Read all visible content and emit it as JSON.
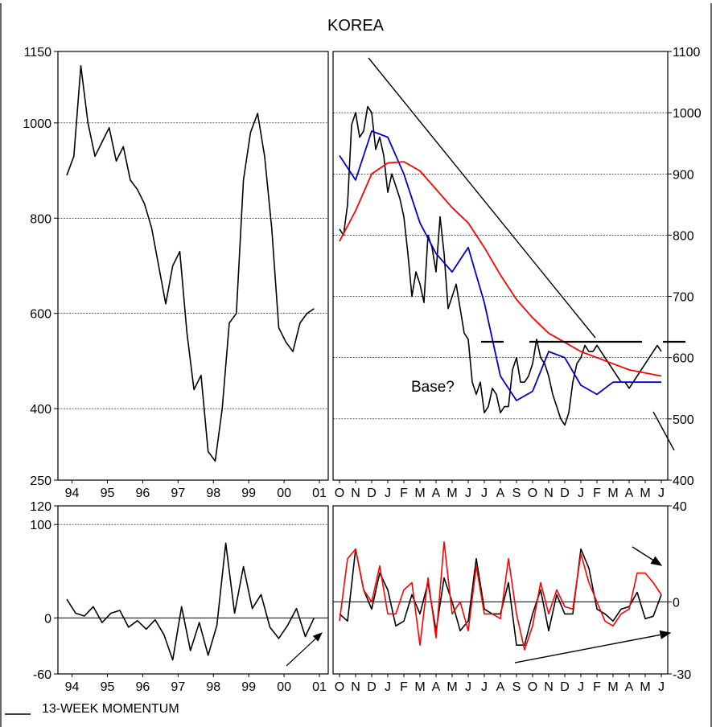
{
  "title": "KOREA",
  "footer_label": "13-WEEK MOMENTUM",
  "chart_data": [
    {
      "type": "line",
      "panel": "long-term-price",
      "ylim": [
        250,
        1150
      ],
      "yticks": [
        250,
        400,
        600,
        800,
        1000,
        1150
      ],
      "xticks": [
        "94",
        "95",
        "96",
        "97",
        "98",
        "99",
        "00",
        "01"
      ],
      "grid": "horizontal dashed at 400, 600, 800, 1000",
      "series": [
        {
          "x": [
            94.0,
            94.2,
            94.4,
            94.6,
            94.8,
            95.0,
            95.2,
            95.4,
            95.6,
            95.8,
            96.0,
            96.2,
            96.4,
            96.6,
            96.8,
            97.0,
            97.2,
            97.4,
            97.6,
            97.8,
            98.0,
            98.2,
            98.4,
            98.6,
            98.8,
            99.0,
            99.2,
            99.4,
            99.6,
            99.8,
            100.0,
            100.2,
            100.4,
            100.6,
            100.8,
            101.0
          ],
          "values": [
            890,
            930,
            1120,
            1000,
            930,
            960,
            990,
            920,
            950,
            880,
            860,
            830,
            780,
            700,
            620,
            700,
            730,
            560,
            440,
            470,
            310,
            290,
            400,
            580,
            600,
            880,
            980,
            1020,
            930,
            780,
            570,
            540,
            520,
            580,
            600,
            610
          ]
        }
      ]
    },
    {
      "type": "line",
      "panel": "recent-price",
      "ylim": [
        400,
        1100
      ],
      "yticks": [
        400,
        500,
        600,
        700,
        800,
        900,
        1000,
        1100
      ],
      "xticks": [
        "O",
        "N",
        "D",
        "J",
        "F",
        "M",
        "A",
        "M",
        "J",
        "J",
        "A",
        "S",
        "O",
        "N",
        "D",
        "J",
        "F",
        "M",
        "A",
        "M",
        "J"
      ],
      "grid": "horizontal dashed at 500, 600, 700, 800, 900, 1000",
      "annotations": [
        "Base?"
      ],
      "series": [
        {
          "color": "#000000",
          "x": [
            0,
            0.25,
            0.5,
            0.75,
            1.0,
            1.25,
            1.5,
            1.75,
            2.0,
            2.25,
            2.5,
            2.75,
            3.0,
            3.25,
            3.5,
            3.75,
            4.0,
            4.25,
            4.5,
            4.75,
            5.0,
            5.25,
            5.5,
            5.75,
            6.0,
            6.25,
            6.5,
            6.75,
            7.0,
            7.25,
            7.5,
            7.75,
            8.0,
            8.25,
            8.5,
            8.75,
            9.0,
            9.25,
            9.5,
            9.75,
            10.0,
            10.25,
            10.5,
            10.75,
            11.0,
            11.25,
            11.5,
            11.75,
            12.0,
            12.25,
            12.5,
            12.75,
            13.0,
            13.25,
            13.5,
            13.75,
            14.0,
            14.25,
            14.5,
            14.75,
            15.0,
            15.25,
            15.5,
            15.75,
            16.0,
            16.25,
            16.5,
            16.75,
            17.0,
            17.25,
            17.5,
            17.75,
            18.0,
            18.25,
            18.5,
            18.75,
            19.0,
            19.25,
            19.5,
            19.75,
            20.0
          ],
          "values": [
            810,
            800,
            850,
            980,
            1000,
            960,
            970,
            1010,
            1000,
            940,
            960,
            930,
            870,
            900,
            880,
            860,
            830,
            770,
            700,
            740,
            720,
            690,
            800,
            780,
            740,
            830,
            770,
            680,
            700,
            720,
            680,
            640,
            630,
            560,
            540,
            560,
            510,
            520,
            550,
            540,
            510,
            520,
            520,
            580,
            600,
            560,
            560,
            570,
            590,
            630,
            600,
            590,
            570,
            540,
            520,
            500,
            490,
            510,
            560,
            590,
            600,
            620,
            610,
            610,
            620,
            610,
            600,
            590,
            580,
            570,
            560,
            560,
            550,
            560,
            570,
            580,
            590,
            600,
            610,
            620,
            610
          ]
        },
        {
          "color": "#0000cc",
          "x": [
            0,
            1,
            2,
            3,
            4,
            5,
            6,
            7,
            8,
            9,
            10,
            11,
            12,
            13,
            14,
            15,
            16,
            17,
            18,
            19,
            20
          ],
          "values": [
            930,
            890,
            970,
            960,
            900,
            820,
            770,
            740,
            780,
            690,
            570,
            530,
            545,
            610,
            600,
            555,
            540,
            560,
            560,
            560,
            560
          ]
        },
        {
          "color": "#ff0000",
          "x": [
            0,
            1,
            2,
            3,
            4,
            5,
            6,
            7,
            8,
            9,
            10,
            11,
            12,
            13,
            14,
            15,
            16,
            17,
            18,
            19,
            20
          ],
          "values": [
            790,
            840,
            900,
            918,
            920,
            905,
            875,
            845,
            820,
            780,
            735,
            695,
            665,
            640,
            625,
            610,
            600,
            590,
            580,
            575,
            570
          ]
        }
      ]
    },
    {
      "type": "line",
      "panel": "long-term-momentum",
      "ylim": [
        -60,
        120
      ],
      "yticks": [
        -60,
        0,
        100,
        120
      ],
      "xticks": [
        "94",
        "95",
        "96",
        "97",
        "98",
        "99",
        "00",
        "01"
      ],
      "grid": "horizontal dashed at 100; solid zero line",
      "series": [
        {
          "x": [
            94.0,
            94.25,
            94.5,
            94.75,
            95.0,
            95.25,
            95.5,
            95.75,
            96.0,
            96.25,
            96.5,
            96.75,
            97.0,
            97.25,
            97.5,
            97.75,
            98.0,
            98.25,
            98.5,
            98.75,
            99.0,
            99.25,
            99.5,
            99.75,
            100.0,
            100.25,
            100.5,
            100.75,
            101.0
          ],
          "values": [
            20,
            5,
            2,
            12,
            -5,
            5,
            8,
            -10,
            -3,
            -12,
            -2,
            -18,
            -45,
            12,
            -35,
            -5,
            -40,
            -8,
            80,
            5,
            55,
            10,
            25,
            -10,
            -22,
            -8,
            10,
            -20,
            0
          ]
        }
      ]
    },
    {
      "type": "line",
      "panel": "recent-momentum",
      "ylim": [
        -30,
        40
      ],
      "yticks": [
        -30,
        0,
        40
      ],
      "xticks": [
        "O",
        "N",
        "D",
        "J",
        "F",
        "M",
        "A",
        "M",
        "J",
        "J",
        "A",
        "S",
        "O",
        "N",
        "D",
        "J",
        "F",
        "M",
        "A",
        "M",
        "J"
      ],
      "grid": "solid zero line",
      "series": [
        {
          "color": "#000000",
          "x": [
            0,
            0.5,
            1,
            1.5,
            2,
            2.5,
            3,
            3.5,
            4,
            4.5,
            5,
            5.5,
            6,
            6.5,
            7,
            7.5,
            8,
            8.5,
            9,
            9.5,
            10,
            10.5,
            11,
            11.5,
            12,
            12.5,
            13,
            13.5,
            14,
            14.5,
            15,
            15.5,
            16,
            16.5,
            17,
            17.5,
            18,
            18.5,
            19,
            19.5,
            20
          ],
          "values": [
            -5,
            -8,
            22,
            5,
            -3,
            12,
            5,
            -10,
            -8,
            3,
            -5,
            8,
            -12,
            10,
            0,
            -12,
            -8,
            18,
            -3,
            -5,
            -5,
            8,
            -18,
            -18,
            -5,
            5,
            -12,
            3,
            -5,
            -5,
            22,
            14,
            -3,
            -5,
            -8,
            -3,
            -2,
            4,
            -7,
            -6,
            3
          ]
        },
        {
          "color": "#ff0000",
          "x": [
            0,
            0.5,
            1,
            1.5,
            2,
            2.5,
            3,
            3.5,
            4,
            4.5,
            5,
            5.5,
            6,
            6.5,
            7,
            7.5,
            8,
            8.5,
            9,
            9.5,
            10,
            10.5,
            11,
            11.5,
            12,
            12.5,
            13,
            13.5,
            14,
            14.5,
            15,
            15.5,
            16,
            16.5,
            17,
            17.5,
            18,
            18.5,
            19,
            19.5,
            20
          ],
          "values": [
            -8,
            18,
            22,
            5,
            0,
            15,
            -5,
            -5,
            5,
            8,
            -18,
            10,
            -15,
            25,
            -5,
            0,
            -12,
            15,
            -5,
            -5,
            -7,
            18,
            -5,
            -20,
            -10,
            8,
            -5,
            5,
            -2,
            -3,
            20,
            8,
            0,
            -8,
            -10,
            -5,
            -3,
            12,
            12,
            8,
            3
          ]
        }
      ]
    }
  ]
}
